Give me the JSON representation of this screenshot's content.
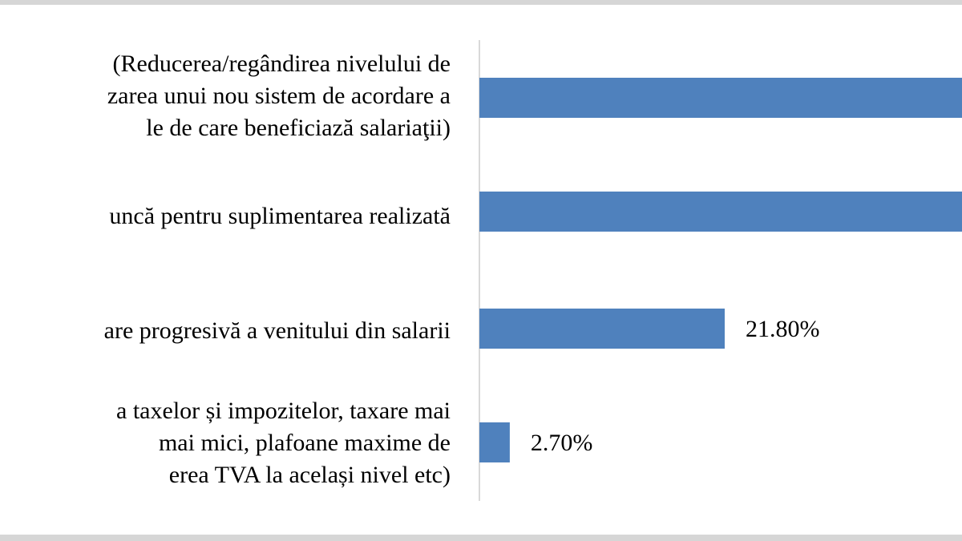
{
  "chart_data": {
    "type": "bar",
    "orientation": "horizontal",
    "categories": [
      [
        "(Reducerea/regândirea nivelului de",
        "zarea unui nou sistem de acordare a",
        "le de care beneficiază salariaţii)"
      ],
      [
        "uncă pentru suplimentarea realizată"
      ],
      [
        "are progresivă a venitului din salarii"
      ],
      [
        "a taxelor și impozitelor, taxare mai",
        "mai mici, plafoane maxime de",
        "erea TVA la același nivel etc)"
      ]
    ],
    "values": [
      null,
      null,
      21.8,
      2.7
    ],
    "value_labels": [
      "",
      "",
      "21.80%",
      "2.70%"
    ],
    "bars_extend_beyond_view": [
      true,
      true,
      false,
      false
    ],
    "xlim": [
      0,
      50
    ],
    "axis_color": "#d9d9d9",
    "bar_color": "#4f81bd",
    "grid": false,
    "legend": "none"
  }
}
